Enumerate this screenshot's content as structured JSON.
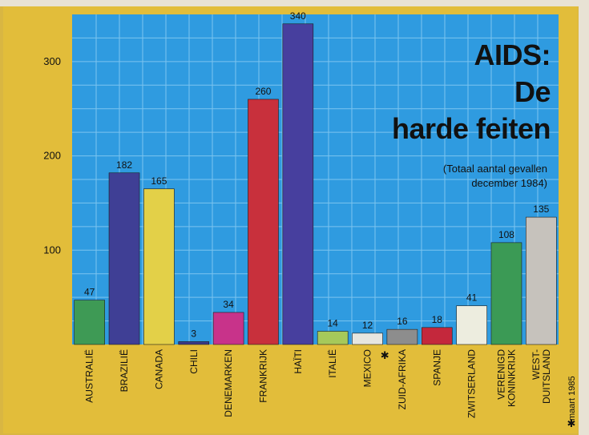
{
  "chart_data": {
    "type": "bar",
    "title_lines": [
      "AIDS:",
      "De",
      "harde feiten"
    ],
    "subtitle_lines": [
      "(Totaal aantal gevallen",
      "december 1984)"
    ],
    "categories": [
      [
        "AUSTRALIË"
      ],
      [
        "BRAZILIË"
      ],
      [
        "CANADA"
      ],
      [
        "CHILI"
      ],
      [
        "DENEMARKEN"
      ],
      [
        "FRANKRIJK"
      ],
      [
        "HAÏTI"
      ],
      [
        "ITALIË"
      ],
      [
        "MEXICO"
      ],
      [
        "ZUID-AFRIKA"
      ],
      [
        "SPANJE"
      ],
      [
        "ZWITSERLAND"
      ],
      [
        "VERENIGD",
        "KONINKRIJK"
      ],
      [
        "WEST-",
        "DUITSLAND"
      ]
    ],
    "values": [
      47,
      182,
      165,
      3,
      34,
      260,
      340,
      14,
      12,
      16,
      18,
      41,
      108,
      135
    ],
    "colors": [
      "#3e9a55",
      "#3f3f95",
      "#e3d048",
      "#3a3a88",
      "#c8338a",
      "#c8303c",
      "#473f9e",
      "#a6c95a",
      "#e6e6e0",
      "#8d8d8d",
      "#c4283c",
      "#ededdf",
      "#3b9a55",
      "#c6c2bc"
    ],
    "yticks": [
      100,
      200,
      300
    ],
    "ylim": [
      0,
      350
    ],
    "asterisk_category": "ZUID-AFRIKA",
    "footnote": "maart 1985",
    "footnote_mark": "✱",
    "grid": true,
    "plot_background": "#2f9be0",
    "frame_color": "#e2bd3a"
  }
}
